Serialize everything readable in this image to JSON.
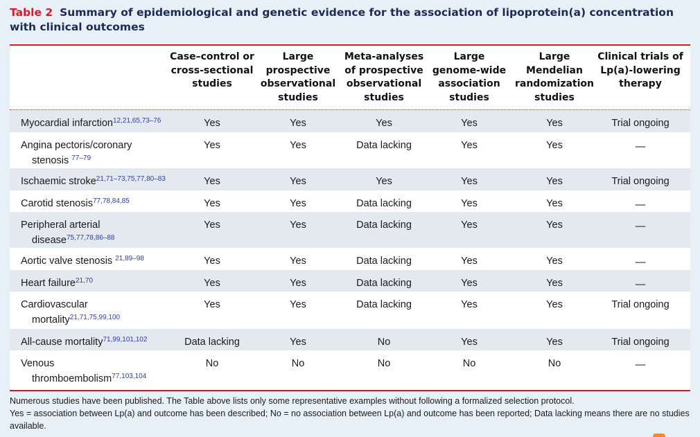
{
  "title": {
    "label": "Table 2",
    "text": "Summary of epidemiological and genetic evidence for the association of lipoprotein(a) concentration with clinical outcomes"
  },
  "columns": [
    {
      "lines": [
        "Case–control or",
        "cross-sectional",
        "studies"
      ]
    },
    {
      "lines": [
        "Large",
        "prospective",
        "observational",
        "studies"
      ]
    },
    {
      "lines": [
        "Meta-analyses",
        "of prospective",
        "observational",
        "studies"
      ]
    },
    {
      "lines": [
        "Large",
        "genome-wide",
        "association",
        "studies"
      ]
    },
    {
      "lines": [
        "Large",
        "Mendelian",
        "randomization",
        "studies"
      ]
    },
    {
      "lines": [
        "Clinical trials of",
        "Lp(a)-lowering",
        "therapy"
      ]
    }
  ],
  "rows": [
    {
      "lines": [
        "Myocardial infarction"
      ],
      "ref": "12,21,65,73–76",
      "values": [
        "Yes",
        "Yes",
        "Yes",
        "Yes",
        "Yes",
        "Trial ongoing"
      ]
    },
    {
      "lines": [
        "Angina pectoris/coronary",
        "stenosis "
      ],
      "ref": "77–79",
      "values": [
        "Yes",
        "Yes",
        "Data lacking",
        "Yes",
        "Yes",
        "—"
      ]
    },
    {
      "lines": [
        "Ischaemic stroke"
      ],
      "ref": "21,71–73,75,77,80–83",
      "values": [
        "Yes",
        "Yes",
        "Yes",
        "Yes",
        "Yes",
        "Trial ongoing"
      ]
    },
    {
      "lines": [
        "Carotid stenosis"
      ],
      "ref": "77,78,84,85",
      "values": [
        "Yes",
        "Yes",
        "Data lacking",
        "Yes",
        "Yes",
        "—"
      ]
    },
    {
      "lines": [
        "Peripheral arterial",
        "disease"
      ],
      "ref": "75,77,78,86–88",
      "values": [
        "Yes",
        "Yes",
        "Data lacking",
        "Yes",
        "Yes",
        "—"
      ]
    },
    {
      "lines": [
        "Aortic valve stenosis "
      ],
      "ref": "21,89–98",
      "values": [
        "Yes",
        "Yes",
        "Data lacking",
        "Yes",
        "Yes",
        "—"
      ]
    },
    {
      "lines": [
        "Heart failure"
      ],
      "ref": "21,70",
      "values": [
        "Yes",
        "Yes",
        "Data lacking",
        "Yes",
        "Yes",
        "—"
      ]
    },
    {
      "lines": [
        "Cardiovascular",
        "mortality"
      ],
      "ref": "21,71,75,99,100",
      "values": [
        "Yes",
        "Yes",
        "Data lacking",
        "Yes",
        "Yes",
        "Trial ongoing"
      ]
    },
    {
      "lines": [
        "All-cause mortality"
      ],
      "ref": "71,99,101,102",
      "values": [
        "Data lacking",
        "Yes",
        "No",
        "Yes",
        "Yes",
        "Trial ongoing"
      ]
    },
    {
      "lines": [
        "Venous",
        "thromboembolism"
      ],
      "ref": "77,103,104",
      "values": [
        "No",
        "No",
        "No",
        "No",
        "No",
        "—"
      ]
    }
  ],
  "footnotes": [
    "Numerous studies have been published. The Table above lists only some representative examples without following a formalized selection protocol.",
    "Yes = association between Lp(a) and outcome has been described; No = no association between Lp(a) and outcome has been reported; Data lacking means there are no studies available."
  ],
  "colors": {
    "accent_red": "#d6182b",
    "title_navy": "#1e2a55",
    "ref_blue": "#2b3fa5",
    "row_shade": "#e4e9ef",
    "page_bg": "#e6f0f6"
  }
}
